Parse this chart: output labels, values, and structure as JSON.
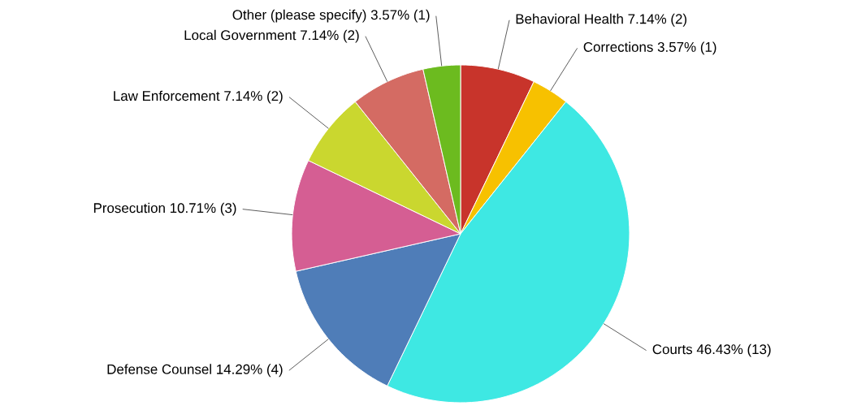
{
  "chart_data": {
    "type": "pie",
    "categories": [
      "Behavioral Health",
      "Corrections",
      "Courts",
      "Defense Counsel",
      "Prosecution",
      "Law Enforcement",
      "Local Government",
      "Other (please specify)"
    ],
    "values": [
      7.14,
      3.57,
      46.43,
      14.29,
      10.71,
      7.14,
      7.14,
      3.57
    ],
    "value_labels": [
      "7.14% (2)",
      "3.57% (1)",
      "46.43% (13)",
      "14.29% (4)",
      "10.71% (3)",
      "7.14% (2)",
      "7.14% (2)",
      "3.57% (1)"
    ],
    "colors": [
      "#c8342b",
      "#f7c100",
      "#3ee8e3",
      "#4f7db8",
      "#d55e93",
      "#cad72f",
      "#d46b63",
      "#6cbb1f"
    ]
  }
}
